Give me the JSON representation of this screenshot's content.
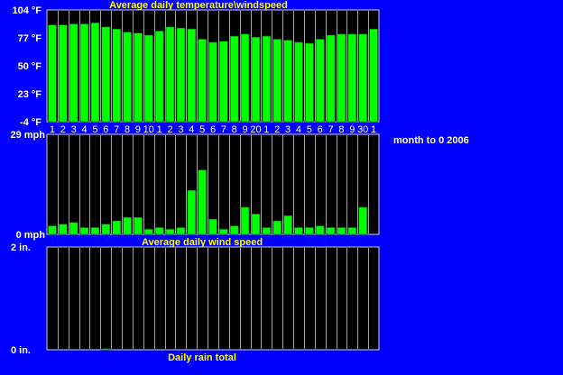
{
  "colors": {
    "background": "#0000FF",
    "panel": "#000000",
    "bar": "#00FF00",
    "bar_dark": "#007700",
    "grid": "#A0A0A0",
    "title_text": "#FFFF00",
    "label_text": "#FFFFFF"
  },
  "side_note": "month to 0 2006",
  "chart_data": [
    {
      "type": "bar",
      "title": "Average daily temperature\\windspeed",
      "ylim": [
        -4,
        104
      ],
      "y_ticks": [
        "104 °F",
        "77 °F",
        "50 °F",
        "23 °F",
        "-4 °F"
      ],
      "categories": [
        "1",
        "2",
        "3",
        "4",
        "5",
        "6",
        "7",
        "8",
        "9",
        "10",
        "1",
        "2",
        "3",
        "4",
        "5",
        "6",
        "7",
        "8",
        "9",
        "20",
        "1",
        "2",
        "3",
        "4",
        "5",
        "6",
        "7",
        "8",
        "9",
        "30",
        "1"
      ],
      "values": [
        91,
        91,
        92,
        92,
        93,
        89,
        87,
        84,
        83,
        81,
        85,
        89,
        88,
        87,
        77,
        74,
        75,
        80,
        82,
        79,
        80,
        77,
        76,
        74,
        73,
        77,
        81,
        82,
        82,
        82,
        87
      ]
    },
    {
      "type": "bar",
      "title": "Average daily wind speed",
      "ylim": [
        0,
        29
      ],
      "y_ticks": [
        "29 mph",
        "0 mph"
      ],
      "values": [
        2.5,
        3,
        3.5,
        2,
        2,
        3,
        4,
        5,
        5,
        1.5,
        2,
        1.5,
        2,
        13,
        19,
        4.5,
        1.5,
        2.5,
        8,
        6,
        2,
        4,
        5.5,
        2,
        2,
        2.5,
        2,
        2,
        2,
        8,
        0
      ]
    },
    {
      "type": "bar",
      "title": "Daily rain total",
      "ylim": [
        0,
        2
      ],
      "y_ticks": [
        "2 in.",
        "0 in."
      ],
      "values": [
        0,
        0,
        0,
        0,
        0,
        0.02,
        0,
        0,
        0,
        0,
        0,
        0,
        0,
        0,
        0,
        0,
        0,
        0,
        0,
        0,
        0,
        0,
        0,
        0,
        0,
        0,
        0,
        0,
        0,
        0,
        0
      ]
    }
  ]
}
